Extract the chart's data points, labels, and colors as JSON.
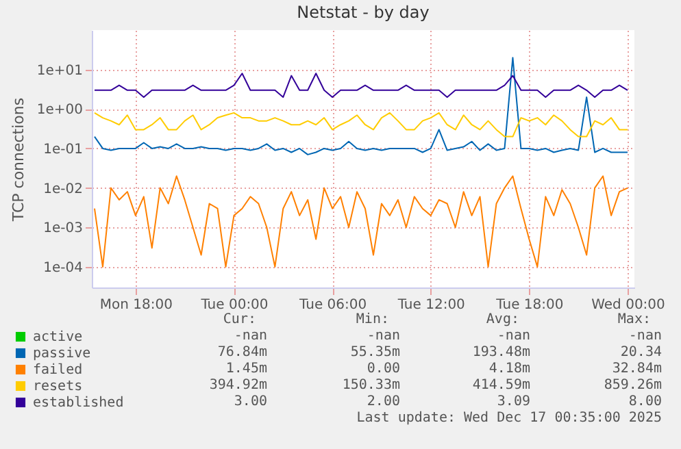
{
  "chart_data": {
    "type": "line",
    "title": "Netstat - by day",
    "ylabel": "TCP connections",
    "log": "y",
    "grid": true,
    "legend": "bottom left",
    "line_style": "solid",
    "marker": "none",
    "x": [
      "2025-12-15T15:30",
      "2025-12-15T16:00",
      "2025-12-15T16:30",
      "2025-12-15T17:00",
      "2025-12-15T17:30",
      "2025-12-15T18:00",
      "2025-12-15T18:30",
      "2025-12-15T19:00",
      "2025-12-15T19:30",
      "2025-12-15T20:00",
      "2025-12-15T20:30",
      "2025-12-15T21:00",
      "2025-12-15T21:30",
      "2025-12-15T22:00",
      "2025-12-15T22:30",
      "2025-12-15T23:00",
      "2025-12-15T23:30",
      "2025-12-16T00:00",
      "2025-12-16T00:30",
      "2025-12-16T01:00",
      "2025-12-16T01:30",
      "2025-12-16T02:00",
      "2025-12-16T02:30",
      "2025-12-16T03:00",
      "2025-12-16T03:30",
      "2025-12-16T04:00",
      "2025-12-16T04:30",
      "2025-12-16T05:00",
      "2025-12-16T05:30",
      "2025-12-16T06:00",
      "2025-12-16T06:30",
      "2025-12-16T07:00",
      "2025-12-16T07:30",
      "2025-12-16T08:00",
      "2025-12-16T08:30",
      "2025-12-16T09:00",
      "2025-12-16T09:30",
      "2025-12-16T10:00",
      "2025-12-16T10:30",
      "2025-12-16T11:00",
      "2025-12-16T11:30",
      "2025-12-16T12:00",
      "2025-12-16T12:30",
      "2025-12-16T13:00",
      "2025-12-16T13:30",
      "2025-12-16T14:00",
      "2025-12-16T14:30",
      "2025-12-16T15:00",
      "2025-12-16T15:30",
      "2025-12-16T16:00",
      "2025-12-16T16:30",
      "2025-12-16T17:00",
      "2025-12-16T17:30",
      "2025-12-16T18:00",
      "2025-12-16T18:30",
      "2025-12-16T19:00",
      "2025-12-16T19:30",
      "2025-12-16T20:00",
      "2025-12-16T20:30",
      "2025-12-16T21:00",
      "2025-12-16T21:30",
      "2025-12-16T22:00",
      "2025-12-16T22:30",
      "2025-12-16T23:00",
      "2025-12-16T23:30",
      "2025-12-17T00:00"
    ],
    "xlim": [
      "2025-12-15T15:20",
      "2025-12-17T00:25"
    ],
    "xticks": [
      {
        "value": "2025-12-15T18:00",
        "label": "Mon 18:00"
      },
      {
        "value": "2025-12-16T00:00",
        "label": "Tue 00:00"
      },
      {
        "value": "2025-12-16T06:00",
        "label": "Tue 06:00"
      },
      {
        "value": "2025-12-16T12:00",
        "label": "Tue 12:00"
      },
      {
        "value": "2025-12-16T18:00",
        "label": "Tue 18:00"
      },
      {
        "value": "2025-12-17T00:00",
        "label": "Wed 00:00"
      }
    ],
    "ylim": [
      3e-05,
      100
    ],
    "yticks": [
      {
        "value": 0.0001,
        "label": "1e-04"
      },
      {
        "value": 0.001,
        "label": "1e-03"
      },
      {
        "value": 0.01,
        "label": "1e-02"
      },
      {
        "value": 0.1,
        "label": "1e-01"
      },
      {
        "value": 1,
        "label": "1e+00"
      },
      {
        "value": 10,
        "label": "1e+01"
      }
    ],
    "series": [
      {
        "name": "active",
        "color": "#00cc00",
        "values": [
          null,
          null,
          null,
          null,
          null,
          null,
          null,
          null,
          null,
          null,
          null,
          null,
          null,
          null,
          null,
          null,
          null,
          null,
          null,
          null,
          null,
          null,
          null,
          null,
          null,
          null,
          null,
          null,
          null,
          null,
          null,
          null,
          null,
          null,
          null,
          null,
          null,
          null,
          null,
          null,
          null,
          null,
          null,
          null,
          null,
          null,
          null,
          null,
          null,
          null,
          null,
          null,
          null,
          null,
          null,
          null,
          null,
          null,
          null,
          null,
          null,
          null,
          null,
          null,
          null,
          null
        ]
      },
      {
        "name": "passive",
        "color": "#0066b3",
        "values": [
          0.2,
          0.1,
          0.09,
          0.1,
          0.1,
          0.1,
          0.14,
          0.1,
          0.11,
          0.1,
          0.13,
          0.1,
          0.1,
          0.11,
          0.1,
          0.1,
          0.09,
          0.1,
          0.1,
          0.09,
          0.1,
          0.13,
          0.09,
          0.1,
          0.08,
          0.1,
          0.07,
          0.08,
          0.1,
          0.09,
          0.1,
          0.15,
          0.1,
          0.09,
          0.1,
          0.09,
          0.1,
          0.1,
          0.1,
          0.1,
          0.08,
          0.1,
          0.3,
          0.09,
          0.1,
          0.11,
          0.15,
          0.09,
          0.13,
          0.09,
          0.1,
          20,
          0.1,
          0.1,
          0.09,
          0.1,
          0.08,
          0.09,
          0.1,
          0.09,
          2,
          0.08,
          0.1,
          0.08,
          0.08,
          0.08
        ]
      },
      {
        "name": "failed",
        "color": "#ff8000",
        "values": [
          0.003,
          0.0001,
          0.01,
          0.005,
          0.008,
          0.002,
          0.006,
          0.0003,
          0.01,
          0.004,
          0.02,
          0.005,
          0.001,
          0.0002,
          0.004,
          0.003,
          0.0001,
          0.002,
          0.003,
          0.006,
          0.004,
          0.001,
          0.0001,
          0.003,
          0.008,
          0.002,
          0.005,
          0.0005,
          0.01,
          0.003,
          0.006,
          0.001,
          0.008,
          0.003,
          0.0002,
          0.004,
          0.002,
          0.005,
          0.001,
          0.006,
          0.003,
          0.002,
          0.005,
          0.004,
          0.001,
          0.008,
          0.002,
          0.006,
          0.0001,
          0.004,
          0.01,
          0.02,
          0.003,
          0.0005,
          0.0001,
          0.006,
          0.002,
          0.009,
          0.004,
          0.001,
          0.0002,
          0.01,
          0.02,
          0.002,
          0.008,
          0.01
        ]
      },
      {
        "name": "resets",
        "color": "#ffcc00",
        "values": [
          0.8,
          0.6,
          0.5,
          0.4,
          0.7,
          0.3,
          0.3,
          0.4,
          0.6,
          0.3,
          0.3,
          0.5,
          0.7,
          0.3,
          0.4,
          0.6,
          0.7,
          0.8,
          0.6,
          0.6,
          0.5,
          0.5,
          0.6,
          0.5,
          0.4,
          0.4,
          0.5,
          0.4,
          0.6,
          0.3,
          0.4,
          0.5,
          0.7,
          0.4,
          0.3,
          0.6,
          0.8,
          0.5,
          0.3,
          0.3,
          0.5,
          0.6,
          0.8,
          0.4,
          0.3,
          0.7,
          0.4,
          0.3,
          0.5,
          0.3,
          0.2,
          0.2,
          0.6,
          0.5,
          0.6,
          0.4,
          0.7,
          0.5,
          0.3,
          0.2,
          0.2,
          0.5,
          0.4,
          0.6,
          0.3,
          0.3
        ]
      },
      {
        "name": "established",
        "color": "#330099",
        "values": [
          3,
          3,
          3,
          4,
          3,
          3,
          2,
          3,
          3,
          3,
          3,
          3,
          4,
          3,
          3,
          3,
          3,
          4,
          8,
          3,
          3,
          3,
          3,
          2,
          7,
          3,
          3,
          8,
          3,
          2,
          3,
          3,
          3,
          4,
          3,
          3,
          3,
          3,
          4,
          3,
          3,
          3,
          3,
          2,
          3,
          3,
          3,
          3,
          3,
          3,
          4,
          7,
          3,
          3,
          3,
          2,
          3,
          3,
          3,
          4,
          3,
          2,
          3,
          3,
          4,
          3
        ]
      }
    ],
    "annotations": [
      "Cur:",
      "Min:",
      "Avg:",
      "Max:",
      "-nan",
      "-nan",
      "-nan",
      "-nan",
      "76.84m",
      "55.35m",
      "193.48m",
      "20.34",
      "1.45m",
      "0.00",
      "4.18m",
      "32.84m",
      "394.92m",
      "150.33m",
      "414.59m",
      "859.26m",
      "3.00",
      "2.00",
      "3.09",
      "8.00",
      "Last update: Wed Dec 17 00:35:00 2025"
    ]
  }
}
